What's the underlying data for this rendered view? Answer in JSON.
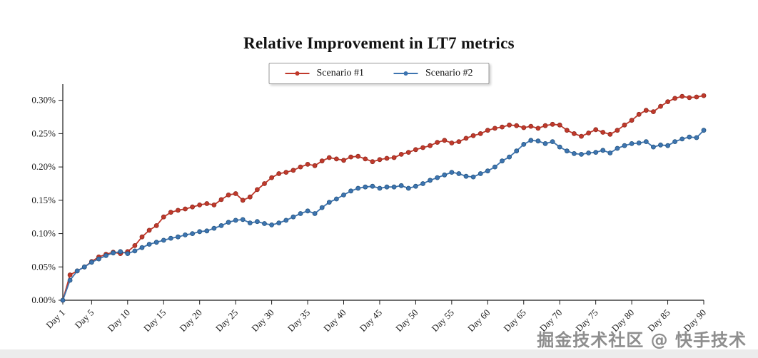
{
  "title": "Relative Improvement in LT7 metrics",
  "legend": {
    "items": [
      {
        "label": "Scenario #1",
        "color": "#c0392b"
      },
      {
        "label": "Scenario #2",
        "color": "#3d74b0"
      }
    ]
  },
  "watermark": "掘金技术社区 @ 快手技术",
  "colors": {
    "axis": "#1a1a1a",
    "tick_text": "#1a1a1a"
  },
  "chart_data": {
    "type": "line",
    "title": "Relative Improvement in LT7 metrics",
    "xlabel": "",
    "ylabel": "",
    "grid": false,
    "legend_position": "top-center",
    "value_unit": "percent",
    "xlim": [
      1,
      90
    ],
    "ylim": [
      0,
      0.32
    ],
    "x": [
      1,
      2,
      3,
      4,
      5,
      6,
      7,
      8,
      9,
      10,
      11,
      12,
      13,
      14,
      15,
      16,
      17,
      18,
      19,
      20,
      21,
      22,
      23,
      24,
      25,
      26,
      27,
      28,
      29,
      30,
      31,
      32,
      33,
      34,
      35,
      36,
      37,
      38,
      39,
      40,
      41,
      42,
      43,
      44,
      45,
      46,
      47,
      48,
      49,
      50,
      51,
      52,
      53,
      54,
      55,
      56,
      57,
      58,
      59,
      60,
      61,
      62,
      63,
      64,
      65,
      66,
      67,
      68,
      69,
      70,
      71,
      72,
      73,
      74,
      75,
      76,
      77,
      78,
      79,
      80,
      81,
      82,
      83,
      84,
      85,
      86,
      87,
      88,
      89,
      90
    ],
    "xticks": [
      1,
      5,
      10,
      15,
      20,
      25,
      30,
      35,
      40,
      45,
      50,
      55,
      60,
      65,
      70,
      75,
      80,
      85,
      90
    ],
    "xtick_labels": [
      "Day 1",
      "Day 5",
      "Day 10",
      "Day 15",
      "Day 20",
      "Day 25",
      "Day 30",
      "Day 35",
      "Day 40",
      "Day 45",
      "Day 50",
      "Day 55",
      "Day 60",
      "Day 65",
      "Day 70",
      "Day 75",
      "Day 80",
      "Day 85",
      "Day 90"
    ],
    "yticks": [
      0,
      0.05,
      0.1,
      0.15,
      0.2,
      0.25,
      0.3
    ],
    "ytick_labels": [
      "0.00%",
      "0.05%",
      "0.10%",
      "0.15%",
      "0.20%",
      "0.25%",
      "0.30%"
    ],
    "series": [
      {
        "name": "Scenario #1",
        "color": "#c0392b",
        "marker_edge": "#8f2a20",
        "values": [
          0.0,
          0.038,
          0.044,
          0.05,
          0.058,
          0.065,
          0.069,
          0.072,
          0.07,
          0.073,
          0.082,
          0.095,
          0.105,
          0.112,
          0.125,
          0.132,
          0.135,
          0.137,
          0.14,
          0.143,
          0.145,
          0.143,
          0.151,
          0.158,
          0.16,
          0.15,
          0.155,
          0.166,
          0.175,
          0.184,
          0.19,
          0.192,
          0.195,
          0.2,
          0.204,
          0.202,
          0.209,
          0.214,
          0.212,
          0.21,
          0.215,
          0.216,
          0.212,
          0.208,
          0.211,
          0.213,
          0.214,
          0.219,
          0.222,
          0.226,
          0.229,
          0.232,
          0.237,
          0.24,
          0.236,
          0.238,
          0.243,
          0.247,
          0.25,
          0.255,
          0.258,
          0.26,
          0.263,
          0.262,
          0.259,
          0.261,
          0.258,
          0.262,
          0.264,
          0.263,
          0.255,
          0.25,
          0.246,
          0.251,
          0.256,
          0.252,
          0.249,
          0.255,
          0.263,
          0.27,
          0.279,
          0.285,
          0.283,
          0.291,
          0.298,
          0.303,
          0.306,
          0.304,
          0.305,
          0.307
        ]
      },
      {
        "name": "Scenario #2",
        "color": "#3d74b0",
        "marker_edge": "#24557f",
        "values": [
          0.0,
          0.03,
          0.044,
          0.05,
          0.057,
          0.062,
          0.067,
          0.071,
          0.073,
          0.07,
          0.074,
          0.079,
          0.084,
          0.087,
          0.09,
          0.093,
          0.095,
          0.098,
          0.1,
          0.103,
          0.104,
          0.108,
          0.112,
          0.117,
          0.12,
          0.121,
          0.116,
          0.118,
          0.115,
          0.113,
          0.116,
          0.12,
          0.125,
          0.13,
          0.134,
          0.13,
          0.139,
          0.147,
          0.152,
          0.158,
          0.164,
          0.168,
          0.17,
          0.171,
          0.168,
          0.17,
          0.17,
          0.172,
          0.168,
          0.171,
          0.175,
          0.18,
          0.184,
          0.188,
          0.192,
          0.19,
          0.186,
          0.185,
          0.19,
          0.194,
          0.2,
          0.209,
          0.215,
          0.224,
          0.234,
          0.24,
          0.239,
          0.235,
          0.238,
          0.23,
          0.224,
          0.22,
          0.219,
          0.221,
          0.222,
          0.225,
          0.221,
          0.228,
          0.232,
          0.235,
          0.236,
          0.238,
          0.23,
          0.233,
          0.232,
          0.238,
          0.242,
          0.245,
          0.244,
          0.255
        ]
      }
    ]
  }
}
